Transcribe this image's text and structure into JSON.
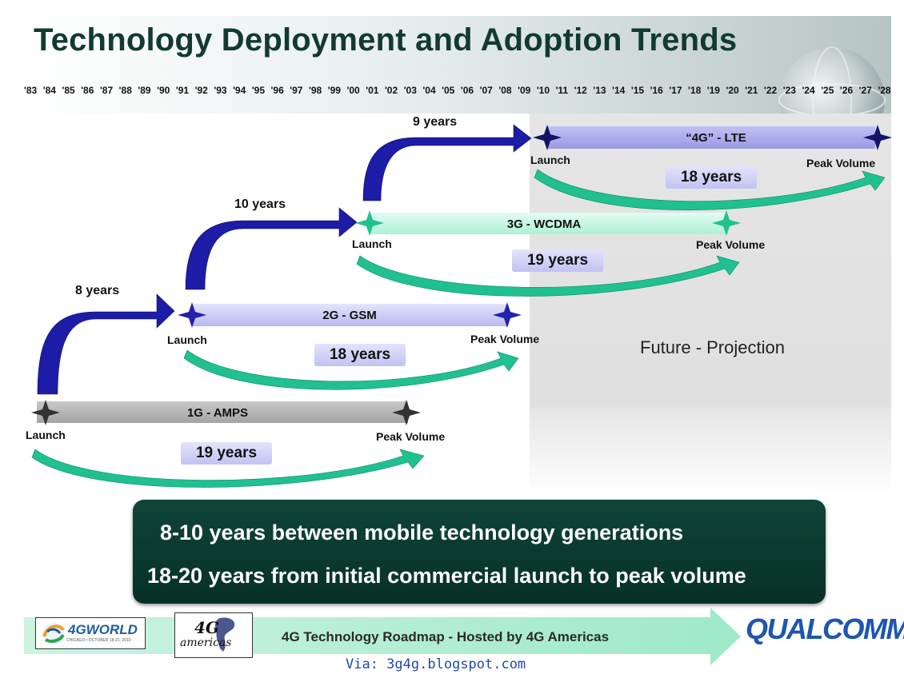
{
  "title": "Technology Deployment and Adoption Trends",
  "timeline_years": [
    "'83",
    "'84",
    "'85",
    "'86",
    "'87",
    "'88",
    "'89",
    "'90",
    "'91",
    "'92",
    "'93",
    "'94",
    "'95",
    "'96",
    "'97",
    "'98",
    "'99",
    "'00",
    "'01",
    "'02",
    "'03",
    "'04",
    "'05",
    "'06",
    "'07",
    "'08",
    "'09",
    "'10",
    "'11",
    "'12",
    "'13",
    "'14",
    "'15",
    "'16",
    "'17",
    "'18",
    "'19",
    "'20",
    "'21",
    "'22",
    "'23",
    "'24",
    "'25",
    "'26",
    "'27",
    "'28"
  ],
  "generations": [
    {
      "name": "1G - AMPS",
      "launch_label": "Launch",
      "peak_label": "Peak Volume",
      "duration": "19 years"
    },
    {
      "name": "2G - GSM",
      "launch_label": "Launch",
      "peak_label": "Peak Volume",
      "duration": "18 years"
    },
    {
      "name": "3G - WCDMA",
      "launch_label": "Launch",
      "peak_label": "Peak Volume",
      "duration": "19 years"
    },
    {
      "name": "“4G” - LTE",
      "launch_label": "Launch",
      "peak_label": "Peak Volume",
      "duration": "18 years"
    }
  ],
  "gaps": [
    "8 years",
    "10 years",
    "9 years"
  ],
  "future_label": "Future - Projection",
  "summary": {
    "line1": "8-10 years between mobile technology generations",
    "line2": "18-20 years from initial commercial launch to peak volume"
  },
  "footer": {
    "text": "4G Technology Roadmap - Hosted by 4G Americas",
    "via": "Via: 3g4g.blogspot.com",
    "logo_4gworld": "4GWORLD",
    "logo_4gworld_sub": "CHICAGO • OCTOBER 18-21, 2010",
    "logo_4gamericas_top": "4G",
    "logo_4gamericas_bottom": "americas",
    "logo_qualcomm": "QUALCOMM",
    "logo_qualcomm_mark": "®"
  },
  "colors": {
    "title": "#123a30",
    "launch_arrow": "#1c1ca6",
    "adoption_arrow": "#20c090",
    "bar_1g": "#b0b0b0",
    "bar_2g": "#c2c2f3",
    "bar_3g": "#bff3df",
    "bar_4g": "#a9a9ec",
    "summary_bg": "#0b3d31",
    "future_bg": "#e4e4e4"
  }
}
